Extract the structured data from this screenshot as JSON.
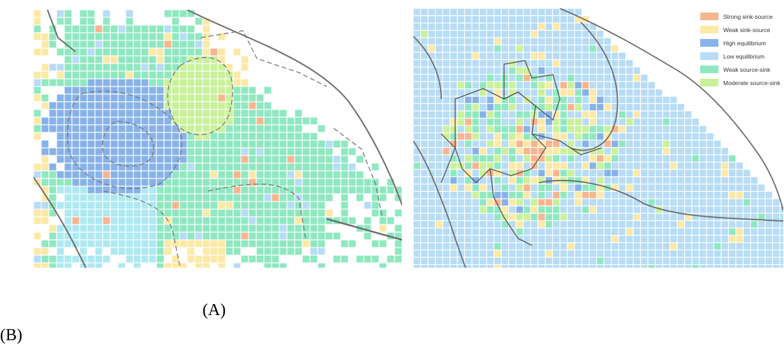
{
  "colors": {
    "strong_sink_source": "#f7b58e",
    "weak_sink_source": "#fce9a6",
    "high_equilibrium": "#87b2e9",
    "low_equilibrium": "#b7dcf5",
    "weak_source_sink": "#8fe8c0",
    "moderate_source_sink": "#c9f19a",
    "cyan_zone": "#aee9f2",
    "grid_line": "#ffffff",
    "boundary": "#6e6e6e"
  },
  "legend": {
    "items": [
      {
        "label": "Strong sink-source",
        "color_key": "strong_sink_source"
      },
      {
        "label": "Weak sink-source",
        "color_key": "weak_sink_source"
      },
      {
        "label": "High equilibrium",
        "color_key": "high_equilibrium"
      },
      {
        "label": "Low equilibrium",
        "color_key": "low_equilibrium"
      },
      {
        "label": "Weak source-sink",
        "color_key": "weak_source_sink"
      },
      {
        "label": "Moderate source-sink",
        "color_key": "moderate_source_sink"
      }
    ]
  },
  "captions": {
    "a": "(A)",
    "b": "(B)"
  }
}
